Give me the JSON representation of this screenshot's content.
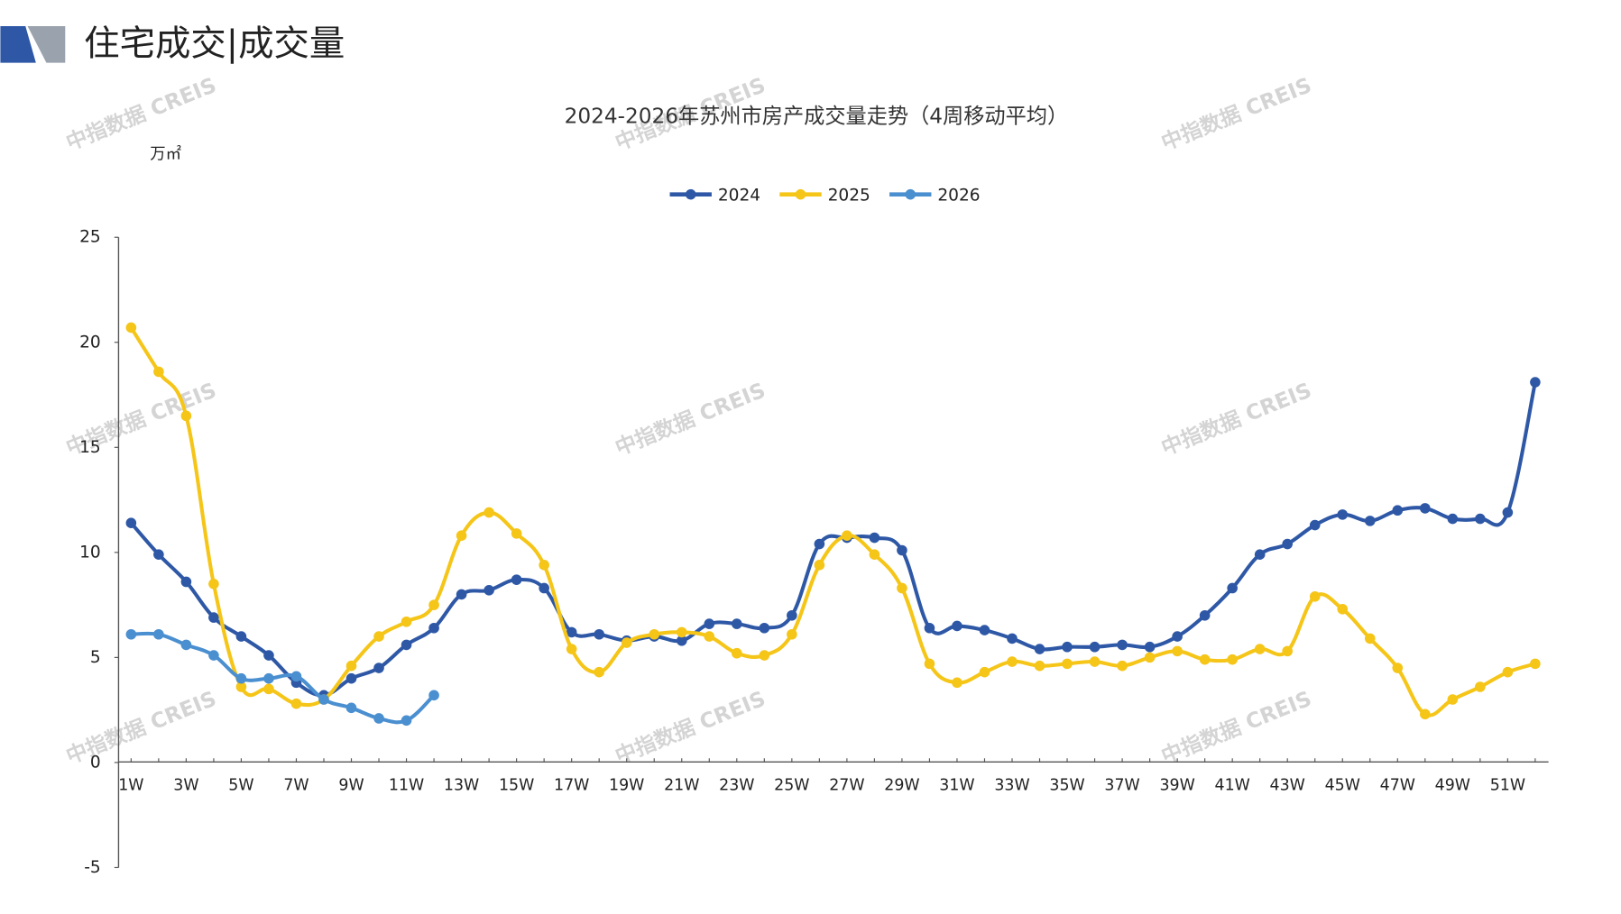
{
  "header": {
    "title": "住宅成交|成交量"
  },
  "watermark": "中指数据 CREIS",
  "chart_data": {
    "type": "line",
    "title": "2024-2026年苏州市房产成交量走势（4周移动平均）",
    "y_unit": "万㎡",
    "categories": [
      "1W",
      null,
      "3W",
      null,
      "5W",
      null,
      "7W",
      null,
      "9W",
      null,
      "11W",
      null,
      "13W",
      null,
      "15W",
      null,
      "17W",
      null,
      "19W",
      null,
      "21W",
      null,
      "23W",
      null,
      "25W",
      null,
      "27W",
      null,
      "29W",
      null,
      "31W",
      null,
      "33W",
      null,
      "35W",
      null,
      "37W",
      null,
      "39W",
      null,
      "41W",
      null,
      "43W",
      null,
      "45W",
      null,
      "47W",
      null,
      "49W",
      null,
      "51W",
      null
    ],
    "series": [
      {
        "name": "2024",
        "color": "#2e58a6",
        "values": [
          11.4,
          9.9,
          8.6,
          6.9,
          6.0,
          5.1,
          3.8,
          3.2,
          4.0,
          4.5,
          5.6,
          6.4,
          8.0,
          8.2,
          8.7,
          8.3,
          6.2,
          6.1,
          5.8,
          6.0,
          5.8,
          6.6,
          6.6,
          6.4,
          7.0,
          10.4,
          10.7,
          10.7,
          10.1,
          6.4,
          6.5,
          6.3,
          5.9,
          5.4,
          5.5,
          5.5,
          5.6,
          5.5,
          6.0,
          7.0,
          8.3,
          9.9,
          10.4,
          11.3,
          11.8,
          11.5,
          12.0,
          12.1,
          11.6,
          11.6,
          11.9,
          18.1
        ]
      },
      {
        "name": "2025",
        "color": "#f5c518",
        "values": [
          20.7,
          18.6,
          16.5,
          8.5,
          3.6,
          3.5,
          2.8,
          3.0,
          4.6,
          6.0,
          6.7,
          7.5,
          10.8,
          11.9,
          10.9,
          9.4,
          5.4,
          4.3,
          5.7,
          6.1,
          6.2,
          6.0,
          5.2,
          5.1,
          6.1,
          9.4,
          10.8,
          9.9,
          8.3,
          4.7,
          3.8,
          4.3,
          4.8,
          4.6,
          4.7,
          4.8,
          4.6,
          5.0,
          5.3,
          4.9,
          4.9,
          5.4,
          5.3,
          7.9,
          7.3,
          5.9,
          4.5,
          2.3,
          3.0,
          3.6,
          4.3,
          4.7
        ]
      },
      {
        "name": "2026",
        "color": "#4a8fd0",
        "values": [
          6.1,
          6.1,
          5.6,
          5.1,
          4.0,
          4.0,
          4.1,
          3.0,
          2.6,
          2.1,
          2.0,
          3.2,
          null,
          null,
          null,
          null,
          null,
          null,
          null,
          null,
          null,
          null,
          null,
          null,
          null,
          null,
          null,
          null,
          null,
          null,
          null,
          null,
          null,
          null,
          null,
          null,
          null,
          null,
          null,
          null,
          null,
          null,
          null,
          null,
          null,
          null,
          null,
          null,
          null,
          null,
          null,
          null
        ]
      }
    ],
    "ylim": [
      -5,
      25
    ],
    "yticks": [
      -5,
      0,
      5,
      10,
      15,
      20,
      25
    ],
    "legend": "top",
    "grid": false
  }
}
